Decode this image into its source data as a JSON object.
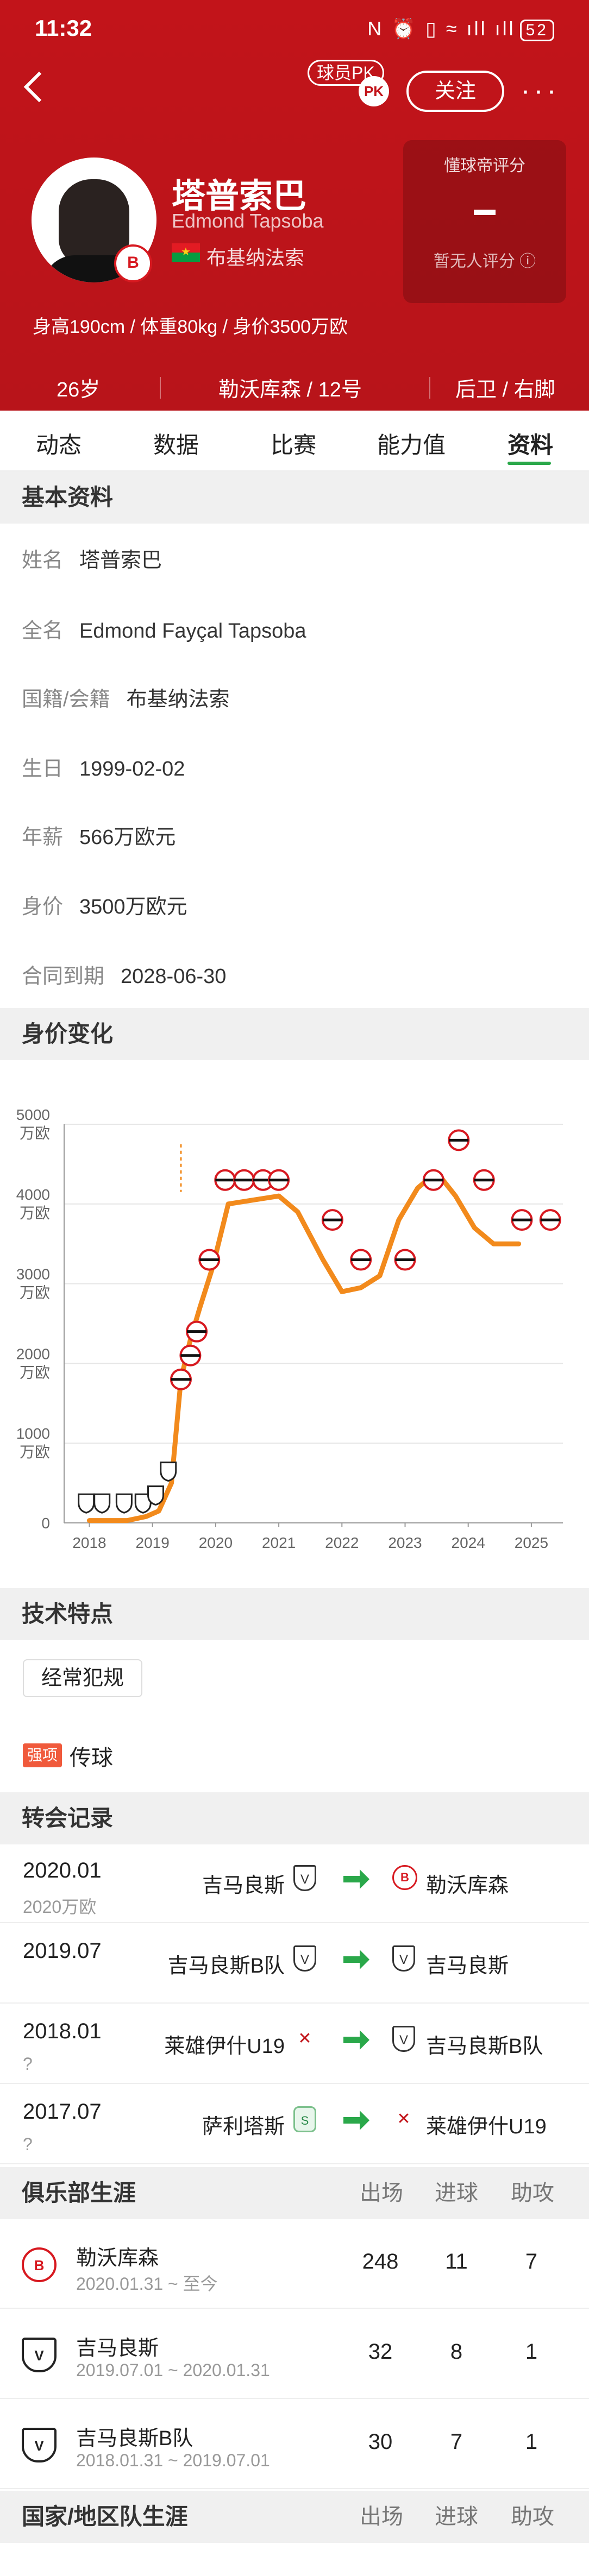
{
  "status_bar": {
    "time": "11:32",
    "icons": "N ⏰ ▯ ≈ ıll ıll",
    "battery": "52"
  },
  "header": {
    "pk_label": "球员PK",
    "pk_badge": "PK",
    "follow_label": "关注",
    "player_name": "塔普索巴",
    "player_name_en": "Edmond Tapsoba",
    "nationality": "布基纳法索",
    "physical": "身高190cm / 体重80kg / 身价3500万欧",
    "rating_title": "懂球帝评分",
    "rating_value": "-",
    "rating_note": "暂无人评分 ⓘ",
    "age": "26岁",
    "club_number": "勒沃库森 / 12号",
    "position": "后卫 / 右脚",
    "club_badge_text": "B"
  },
  "tabs": [
    "动态",
    "数据",
    "比赛",
    "能力值",
    "资料"
  ],
  "basic": {
    "title": "基本资料",
    "rows": [
      {
        "key": "姓名",
        "value": "塔普索巴"
      },
      {
        "key": "全名",
        "value": "Edmond Fayçal Tapsoba"
      },
      {
        "key": "国籍/会籍",
        "value": "布基纳法索"
      },
      {
        "key": "生日",
        "value": "1999-02-02"
      },
      {
        "key": "年薪",
        "value": "566万欧元"
      },
      {
        "key": "身价",
        "value": "3500万欧元"
      },
      {
        "key": "合同到期",
        "value": "2028-06-30"
      }
    ]
  },
  "value_section": {
    "title": "身价变化"
  },
  "chart_data": {
    "type": "line",
    "title": "",
    "x_ticks": [
      "2018",
      "2019",
      "2020",
      "2021",
      "2022",
      "2023",
      "2024",
      "2025"
    ],
    "y_ticks": [
      "0",
      "1000\n万欧",
      "2000\n万欧",
      "3000\n万欧",
      "4000\n万欧",
      "5000\n万欧"
    ],
    "ylim": [
      0,
      5000
    ],
    "xlim": [
      2017.6,
      2025.5
    ],
    "line_color": "#f28a1c",
    "series": [
      {
        "points": [
          [
            2018.0,
            30
          ],
          [
            2018.3,
            30
          ],
          [
            2018.6,
            30
          ],
          [
            2018.9,
            80
          ],
          [
            2019.1,
            150
          ],
          [
            2019.3,
            500
          ],
          [
            2019.45,
            1800
          ],
          [
            2019.6,
            2300
          ],
          [
            2019.75,
            2700
          ],
          [
            2019.95,
            3200
          ],
          [
            2020.2,
            4000
          ],
          [
            2020.6,
            4050
          ],
          [
            2021.0,
            4100
          ],
          [
            2021.3,
            3900
          ],
          [
            2021.7,
            3300
          ],
          [
            2022.0,
            2900
          ],
          [
            2022.3,
            2950
          ],
          [
            2022.6,
            3100
          ],
          [
            2022.9,
            3800
          ],
          [
            2023.2,
            4200
          ],
          [
            2023.5,
            4400
          ],
          [
            2023.8,
            4100
          ],
          [
            2024.1,
            3700
          ],
          [
            2024.4,
            3500
          ],
          [
            2024.8,
            3500
          ]
        ]
      }
    ],
    "markers": [
      {
        "x": 2017.95,
        "y": 250,
        "club": "vit"
      },
      {
        "x": 2018.2,
        "y": 250,
        "club": "vit"
      },
      {
        "x": 2018.55,
        "y": 250,
        "club": "vit"
      },
      {
        "x": 2018.85,
        "y": 250,
        "club": "vit"
      },
      {
        "x": 2019.05,
        "y": 350,
        "club": "vit"
      },
      {
        "x": 2019.25,
        "y": 650,
        "club": "vit"
      },
      {
        "x": 2019.45,
        "y": 1800,
        "club": "lev"
      },
      {
        "x": 2019.6,
        "y": 2100,
        "club": "lev"
      },
      {
        "x": 2019.7,
        "y": 2400,
        "club": "lev"
      },
      {
        "x": 2019.9,
        "y": 3300,
        "club": "lev"
      },
      {
        "x": 2020.15,
        "y": 4300,
        "club": "lev"
      },
      {
        "x": 2020.45,
        "y": 4300,
        "club": "lev"
      },
      {
        "x": 2020.75,
        "y": 4300,
        "club": "lev"
      },
      {
        "x": 2021.0,
        "y": 4300,
        "club": "lev"
      },
      {
        "x": 2021.85,
        "y": 3800,
        "club": "lev"
      },
      {
        "x": 2022.3,
        "y": 3300,
        "club": "lev"
      },
      {
        "x": 2023.0,
        "y": 3300,
        "club": "lev"
      },
      {
        "x": 2023.45,
        "y": 4300,
        "club": "lev"
      },
      {
        "x": 2023.85,
        "y": 4800,
        "club": "lev"
      },
      {
        "x": 2024.25,
        "y": 4300,
        "club": "lev"
      },
      {
        "x": 2024.85,
        "y": 3800,
        "club": "lev"
      },
      {
        "x": 2025.3,
        "y": 3800,
        "club": "lev"
      }
    ]
  },
  "skills": {
    "title": "技术特点",
    "tag": "经常犯规",
    "strong_label": "强项",
    "strong_value": "传球"
  },
  "transfers": {
    "title": "转会记录",
    "rows": [
      {
        "date": "2020.01",
        "fee": "2020万欧",
        "from": "吉马良斯",
        "from_icon": "vit",
        "to": "勒沃库森",
        "to_icon": "lev"
      },
      {
        "date": "2019.07",
        "fee": "",
        "from": "吉马良斯B队",
        "from_icon": "vit",
        "to": "吉马良斯",
        "to_icon": "vit"
      },
      {
        "date": "2018.01",
        "fee": "?",
        "from": "莱雄伊什U19",
        "from_icon": "leg",
        "to": "吉马良斯B队",
        "to_icon": "vit"
      },
      {
        "date": "2017.07",
        "fee": "?",
        "from": "萨利塔斯",
        "from_icon": "sal",
        "to": "莱雄伊什U19",
        "to_icon": "leg"
      }
    ]
  },
  "club_career": {
    "title": "俱乐部生涯",
    "cols": [
      "出场",
      "进球",
      "助攻"
    ],
    "rows": [
      {
        "club": "勒沃库森",
        "dates": "2020.01.31 ~ 至今",
        "apps": "248",
        "goals": "11",
        "assists": "7",
        "icon": "lev"
      },
      {
        "club": "吉马良斯",
        "dates": "2019.07.01 ~ 2020.01.31",
        "apps": "32",
        "goals": "8",
        "assists": "1",
        "icon": "vit"
      },
      {
        "club": "吉马良斯B队",
        "dates": "2018.01.31 ~ 2019.07.01",
        "apps": "30",
        "goals": "7",
        "assists": "1",
        "icon": "vit"
      }
    ]
  },
  "national_career": {
    "title": "国家/地区队生涯",
    "cols": [
      "出场",
      "进球",
      "助攻"
    ]
  }
}
